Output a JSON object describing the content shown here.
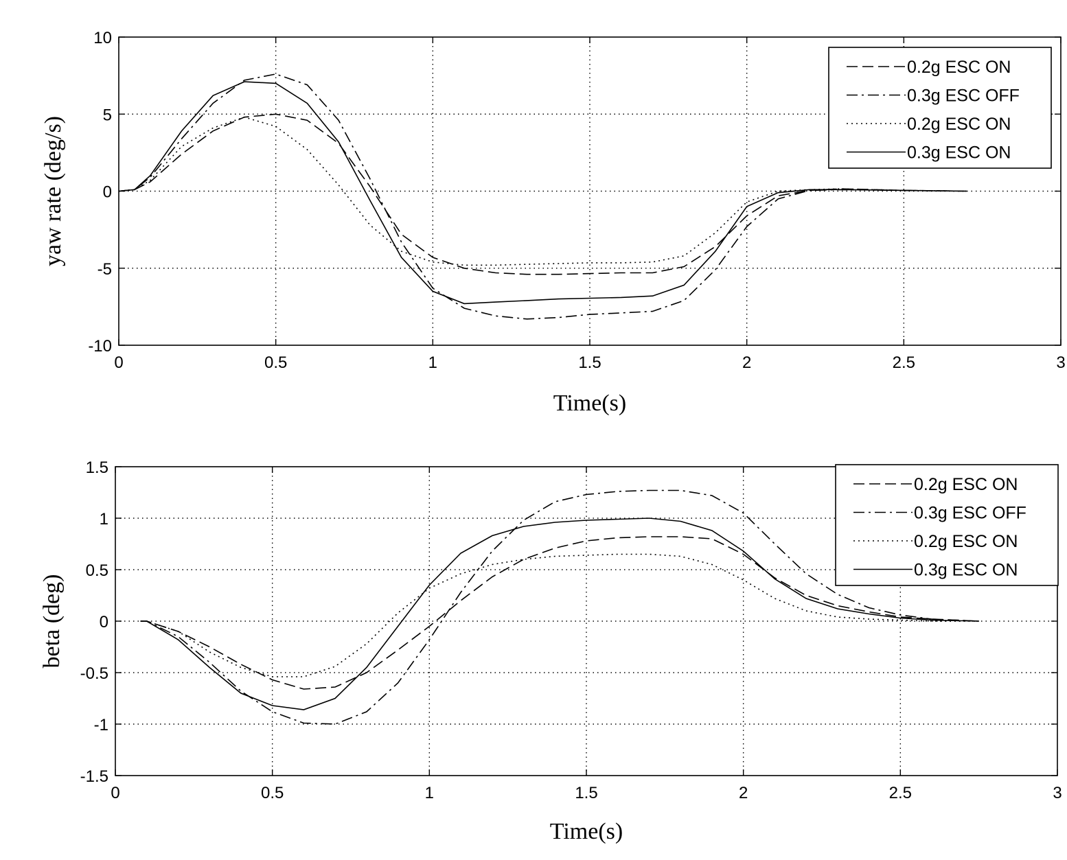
{
  "chart_data": [
    {
      "type": "line",
      "xlabel": "Time(s)",
      "ylabel": "yaw rate (deg/s)",
      "xlim": [
        0,
        3
      ],
      "ylim": [
        -10,
        10
      ],
      "xticks": [
        "0",
        "0.5",
        "1",
        "1.5",
        "2",
        "2.5",
        "3"
      ],
      "yticks": [
        "10",
        "5",
        "0",
        "-5",
        "-10"
      ],
      "grid": true,
      "legend_position": "top-right",
      "series": [
        {
          "name": "0.2g ESC ON",
          "style": "dashed",
          "x": [
            0,
            0.05,
            0.1,
            0.2,
            0.3,
            0.4,
            0.5,
            0.6,
            0.7,
            0.8,
            0.9,
            1.0,
            1.1,
            1.2,
            1.3,
            1.4,
            1.5,
            1.6,
            1.7,
            1.8,
            1.9,
            2.0,
            2.1,
            2.2,
            2.3,
            2.5,
            2.7
          ],
          "y": [
            0,
            0.1,
            0.6,
            2.4,
            3.9,
            4.8,
            5.0,
            4.6,
            3.1,
            0.3,
            -2.8,
            -4.3,
            -5.0,
            -5.3,
            -5.4,
            -5.4,
            -5.35,
            -5.3,
            -5.3,
            -4.9,
            -3.6,
            -1.6,
            -0.3,
            0.05,
            0.15,
            0.05,
            0
          ]
        },
        {
          "name": "0.3g ESC OFF",
          "style": "dashdot",
          "x": [
            0,
            0.05,
            0.1,
            0.2,
            0.3,
            0.4,
            0.5,
            0.6,
            0.7,
            0.8,
            0.9,
            1.0,
            1.1,
            1.2,
            1.3,
            1.4,
            1.5,
            1.6,
            1.7,
            1.8,
            1.9,
            2.0,
            2.1,
            2.2,
            2.3,
            2.5,
            2.7
          ],
          "y": [
            0,
            0.1,
            0.9,
            3.4,
            5.7,
            7.2,
            7.6,
            6.9,
            4.6,
            0.8,
            -3.3,
            -6.3,
            -7.6,
            -8.1,
            -8.3,
            -8.2,
            -8.0,
            -7.9,
            -7.8,
            -7.1,
            -5.1,
            -2.3,
            -0.5,
            0.05,
            0.1,
            0.05,
            0
          ]
        },
        {
          "name": "0.2g ESC ON",
          "style": "dotted",
          "x": [
            0,
            0.05,
            0.1,
            0.2,
            0.3,
            0.4,
            0.5,
            0.6,
            0.7,
            0.8,
            0.9,
            1.0,
            1.1,
            1.2,
            1.3,
            1.4,
            1.5,
            1.6,
            1.7,
            1.8,
            1.9,
            2.0,
            2.1,
            2.2,
            2.3,
            2.5,
            2.7
          ],
          "y": [
            0,
            0.1,
            0.7,
            2.9,
            4.1,
            4.8,
            4.2,
            2.7,
            0.4,
            -2.2,
            -3.9,
            -4.6,
            -4.8,
            -4.8,
            -4.75,
            -4.7,
            -4.65,
            -4.65,
            -4.6,
            -4.2,
            -2.7,
            -0.7,
            0.0,
            0.1,
            0.15,
            0.05,
            0
          ]
        },
        {
          "name": "0.3g ESC ON",
          "style": "solid",
          "x": [
            0,
            0.05,
            0.1,
            0.2,
            0.3,
            0.4,
            0.5,
            0.6,
            0.7,
            0.8,
            0.9,
            1.0,
            1.1,
            1.2,
            1.3,
            1.4,
            1.5,
            1.6,
            1.7,
            1.8,
            1.9,
            2.0,
            2.1,
            2.2,
            2.3,
            2.5,
            2.7
          ],
          "y": [
            0,
            0.1,
            1.0,
            3.9,
            6.2,
            7.1,
            7.0,
            5.7,
            3.2,
            -0.6,
            -4.3,
            -6.5,
            -7.3,
            -7.2,
            -7.1,
            -7.0,
            -6.95,
            -6.9,
            -6.8,
            -6.1,
            -3.9,
            -1.0,
            -0.1,
            0.1,
            0.1,
            0.05,
            0
          ]
        }
      ]
    },
    {
      "type": "line",
      "xlabel": "Time(s)",
      "ylabel": "beta (deg)",
      "xlim": [
        0,
        3
      ],
      "ylim": [
        -1.5,
        1.5
      ],
      "xticks": [
        "0",
        "0.5",
        "1",
        "1.5",
        "2",
        "2.5",
        "3"
      ],
      "yticks": [
        "1.5",
        "1",
        "0.5",
        "0",
        "-0.5",
        "-1",
        "-1.5"
      ],
      "grid": true,
      "legend_position": "top-right",
      "series": [
        {
          "name": "0.2g ESC ON",
          "style": "dashed",
          "x": [
            0.08,
            0.1,
            0.2,
            0.3,
            0.4,
            0.5,
            0.6,
            0.7,
            0.8,
            0.9,
            1.0,
            1.1,
            1.2,
            1.3,
            1.4,
            1.5,
            1.6,
            1.7,
            1.8,
            1.9,
            2.0,
            2.1,
            2.2,
            2.3,
            2.4,
            2.5,
            2.6,
            2.75
          ],
          "y": [
            0,
            0,
            -0.1,
            -0.25,
            -0.42,
            -0.57,
            -0.66,
            -0.64,
            -0.5,
            -0.28,
            -0.05,
            0.2,
            0.43,
            0.6,
            0.71,
            0.78,
            0.81,
            0.82,
            0.82,
            0.8,
            0.65,
            0.42,
            0.25,
            0.15,
            0.09,
            0.04,
            0.02,
            0
          ]
        },
        {
          "name": "0.3g ESC OFF",
          "style": "dashdot",
          "x": [
            0.08,
            0.1,
            0.2,
            0.3,
            0.4,
            0.5,
            0.6,
            0.7,
            0.8,
            0.9,
            1.0,
            1.1,
            1.2,
            1.3,
            1.4,
            1.5,
            1.6,
            1.7,
            1.8,
            1.9,
            2.0,
            2.1,
            2.2,
            2.3,
            2.4,
            2.5,
            2.6,
            2.75
          ],
          "y": [
            0,
            0,
            -0.15,
            -0.4,
            -0.68,
            -0.88,
            -0.99,
            -1.0,
            -0.88,
            -0.6,
            -0.18,
            0.28,
            0.68,
            0.98,
            1.16,
            1.23,
            1.26,
            1.27,
            1.27,
            1.22,
            1.05,
            0.75,
            0.46,
            0.26,
            0.13,
            0.06,
            0.02,
            0
          ]
        },
        {
          "name": "0.2g ESC ON",
          "style": "dotted",
          "x": [
            0.08,
            0.1,
            0.2,
            0.3,
            0.4,
            0.5,
            0.6,
            0.7,
            0.8,
            0.9,
            1.0,
            1.1,
            1.2,
            1.3,
            1.4,
            1.5,
            1.6,
            1.7,
            1.8,
            1.9,
            2.0,
            2.1,
            2.2,
            2.3,
            2.4,
            2.5,
            2.6,
            2.75
          ],
          "y": [
            0,
            0,
            -0.1,
            -0.3,
            -0.45,
            -0.54,
            -0.54,
            -0.44,
            -0.22,
            0.08,
            0.32,
            0.46,
            0.55,
            0.6,
            0.63,
            0.64,
            0.65,
            0.65,
            0.63,
            0.55,
            0.4,
            0.22,
            0.1,
            0.04,
            0.02,
            0.01,
            0,
            0
          ]
        },
        {
          "name": "0.3g ESC ON",
          "style": "solid",
          "x": [
            0.08,
            0.1,
            0.2,
            0.3,
            0.4,
            0.5,
            0.6,
            0.7,
            0.8,
            0.9,
            1.0,
            1.1,
            1.2,
            1.3,
            1.4,
            1.5,
            1.6,
            1.7,
            1.8,
            1.9,
            2.0,
            2.1,
            2.2,
            2.3,
            2.4,
            2.5,
            2.6,
            2.75
          ],
          "y": [
            0,
            0,
            -0.18,
            -0.45,
            -0.7,
            -0.82,
            -0.86,
            -0.75,
            -0.45,
            -0.05,
            0.35,
            0.66,
            0.83,
            0.92,
            0.96,
            0.98,
            0.99,
            1.0,
            0.97,
            0.88,
            0.68,
            0.41,
            0.22,
            0.12,
            0.07,
            0.03,
            0.01,
            0
          ]
        }
      ]
    }
  ]
}
